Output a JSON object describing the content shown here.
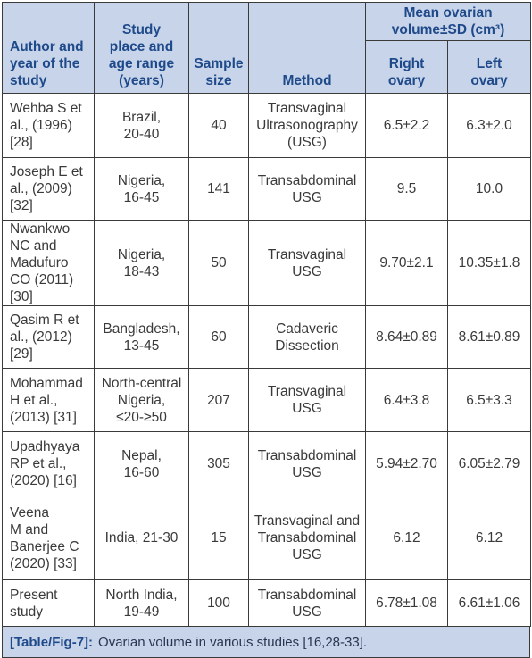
{
  "header": {
    "author": [
      "Author and",
      "year of the",
      "study"
    ],
    "place": [
      "Study",
      "place and",
      "age range",
      "(years)"
    ],
    "size": [
      "Sample",
      "size"
    ],
    "method": "Method",
    "mean": [
      "Mean ovarian",
      "volume±SD (cm³)"
    ],
    "right": [
      "Right",
      "ovary"
    ],
    "left": [
      "Left",
      "ovary"
    ]
  },
  "rows": [
    {
      "author": [
        "Wehba S et",
        "al., (1996)",
        "[28]"
      ],
      "place": [
        "Brazil,",
        "20-40"
      ],
      "size": "40",
      "method": [
        "Transvaginal",
        "Ultrasonography",
        "(USG)"
      ],
      "right": "6.5±2.2",
      "left": "6.3±2.0"
    },
    {
      "author": [
        "Joseph E et",
        "al., (2009)",
        "[32]"
      ],
      "place": [
        "Nigeria,",
        "16-45"
      ],
      "size": "141",
      "method": [
        "Transabdominal",
        "USG"
      ],
      "right": "9.5",
      "left": "10.0"
    },
    {
      "author": [
        "Nwankwo",
        "NC and",
        "Madufuro",
        "CO (2011)",
        "[30]"
      ],
      "place": [
        "Nigeria,",
        "18-43"
      ],
      "size": "50",
      "method": [
        "Transvaginal",
        "USG"
      ],
      "right": "9.70±2.1",
      "left": "10.35±1.8"
    },
    {
      "author": [
        "Qasim R et",
        "al., (2012)",
        "[29]"
      ],
      "place": [
        "Bangladesh,",
        "13-45"
      ],
      "size": "60",
      "method": [
        "Cadaveric",
        "Dissection"
      ],
      "right": "8.64±0.89",
      "left": "8.61±0.89"
    },
    {
      "author": [
        "Mohammad",
        "H et al.,",
        "(2013) [31]"
      ],
      "place": [
        "North-central",
        "Nigeria,",
        "≤20-≥50"
      ],
      "size": "207",
      "method": [
        "Transvaginal",
        "USG"
      ],
      "right": "6.4±3.8",
      "left": "6.5±3.3"
    },
    {
      "author": [
        "Upadhyaya",
        "RP et al.,",
        "(2020) [16]"
      ],
      "place": [
        "Nepal,",
        "16-60"
      ],
      "size": "305",
      "method": [
        "Transabdominal",
        "USG"
      ],
      "right": "5.94±2.70",
      "left": "6.05±2.79"
    },
    {
      "author": [
        "Veena",
        "M and",
        "Banerjee C",
        "(2020) [33]"
      ],
      "place": [
        "India, 21-30"
      ],
      "size": "15",
      "method": [
        "Transvaginal and",
        "Transabdominal",
        "USG"
      ],
      "right": "6.12",
      "left": "6.12"
    },
    {
      "author": [
        "Present",
        "study"
      ],
      "place": [
        "North India,",
        "19-49"
      ],
      "size": "100",
      "method": [
        "Transabdominal",
        "USG"
      ],
      "right": "6.78±1.08",
      "left": "6.61±1.06"
    }
  ],
  "caption": {
    "tag": "[Table/Fig-7]:",
    "text": "Ovarian volume in various studies [16,28-33]."
  }
}
